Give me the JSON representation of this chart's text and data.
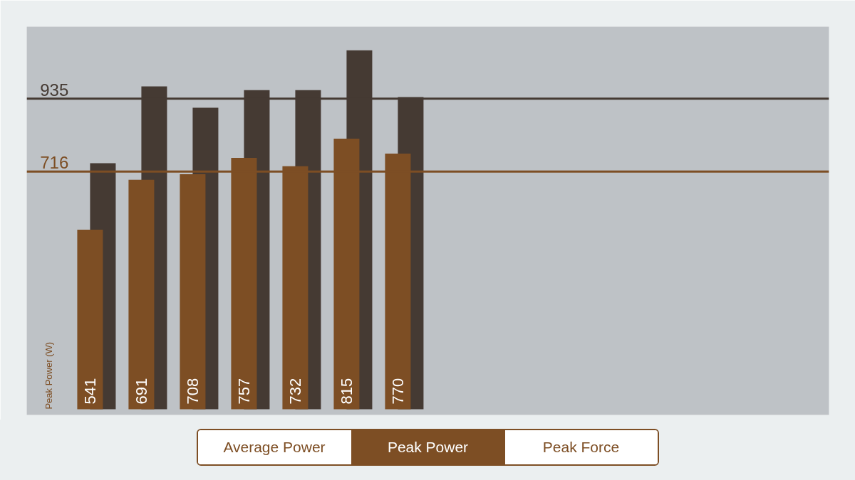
{
  "chart_data": {
    "type": "bar",
    "ylabel": "Peak Power (W)",
    "categories": [
      null,
      null,
      null,
      null,
      null,
      null,
      null
    ],
    "series": [
      {
        "color": "#7d4e24",
        "values": [
          541,
          691,
          708,
          757,
          732,
          815,
          770
        ],
        "value_labels": [
          "541",
          "691",
          "708",
          "757",
          "732",
          "815",
          "770"
        ]
      },
      {
        "color": "#453a33",
        "values": [
          741,
          972,
          908,
          961,
          961,
          1081,
          940
        ]
      }
    ],
    "ylim": [
      -17,
      1152
    ],
    "ref_lines": [
      {
        "axis": "y",
        "value": 935,
        "label": "935",
        "color": "#453a33"
      },
      {
        "axis": "y",
        "value": 716,
        "label": "716",
        "color": "#7d4e24"
      }
    ],
    "annotations": [
      "Average Power",
      "Peak Power",
      "Peak Force"
    ],
    "grid": false
  }
}
